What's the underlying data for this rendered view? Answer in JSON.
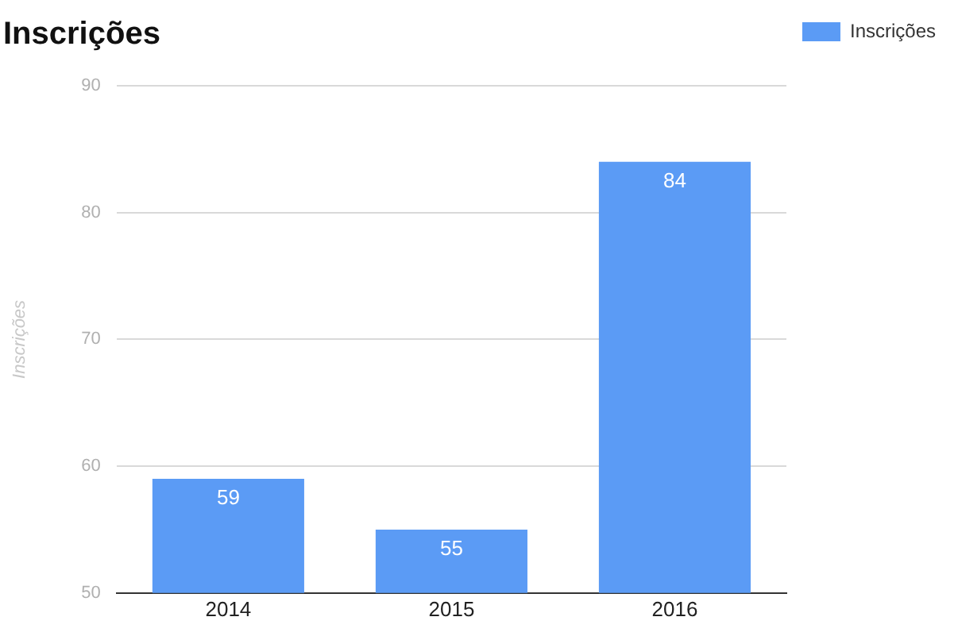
{
  "chart_data": {
    "type": "bar",
    "title": "Inscrições",
    "ylabel": "Inscrições",
    "categories": [
      "2014",
      "2015",
      "2016"
    ],
    "series": [
      {
        "name": "Inscrições",
        "color": "#5b9bf5",
        "values": [
          59,
          55,
          84
        ]
      }
    ],
    "ylim": [
      50,
      90
    ],
    "yticks": [
      50,
      60,
      70,
      80,
      90
    ],
    "grid": "y",
    "legend": "top right",
    "data_labels": true
  }
}
